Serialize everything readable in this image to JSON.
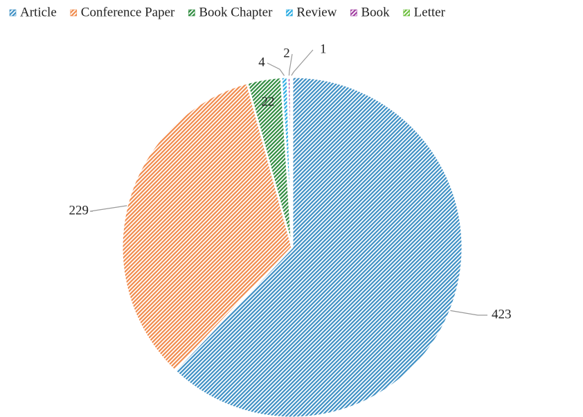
{
  "chart_data": {
    "type": "pie",
    "categories": [
      "Article",
      "Conference Paper",
      "Book Chapter",
      "Review",
      "Book",
      "Letter"
    ],
    "values": [
      423,
      229,
      22,
      4,
      2,
      1
    ],
    "colors": [
      "#3d8fc4",
      "#f08a4b",
      "#2e8b3e",
      "#29abe2",
      "#a03ca0",
      "#6cbf3c"
    ],
    "legend": "top"
  }
}
